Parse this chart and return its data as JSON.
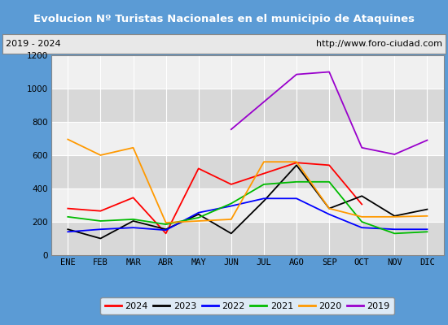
{
  "title": "Evolucion Nº Turistas Nacionales en el municipio de Ataquines",
  "subtitle_left": "2019 - 2024",
  "subtitle_right": "http://www.foro-ciudad.com",
  "title_bg_color": "#5b9bd5",
  "title_text_color": "#ffffff",
  "subtitle_bg_color": "#e8e8e8",
  "subtitle_text_color": "#000000",
  "months": [
    "ENE",
    "FEB",
    "MAR",
    "ABR",
    "MAY",
    "JUN",
    "JUL",
    "AGO",
    "SEP",
    "OCT",
    "NOV",
    "DIC"
  ],
  "ylim": [
    0,
    1200
  ],
  "yticks": [
    0,
    200,
    400,
    600,
    800,
    1000,
    1200
  ],
  "series": {
    "2024": {
      "color": "#ff0000",
      "data": [
        280,
        265,
        345,
        130,
        520,
        425,
        490,
        555,
        540,
        305,
        null,
        null
      ]
    },
    "2023": {
      "color": "#000000",
      "data": [
        155,
        100,
        205,
        155,
        245,
        130,
        325,
        540,
        280,
        355,
        235,
        275
      ]
    },
    "2022": {
      "color": "#0000ff",
      "data": [
        140,
        155,
        165,
        150,
        255,
        295,
        340,
        340,
        245,
        165,
        155,
        155
      ]
    },
    "2021": {
      "color": "#00bb00",
      "data": [
        230,
        205,
        215,
        185,
        225,
        310,
        425,
        440,
        440,
        200,
        130,
        140
      ]
    },
    "2020": {
      "color": "#ff9900",
      "data": [
        695,
        600,
        645,
        195,
        205,
        215,
        560,
        560,
        280,
        230,
        230,
        235
      ]
    },
    "2019": {
      "color": "#9900cc",
      "data": [
        null,
        null,
        null,
        null,
        null,
        755,
        null,
        1085,
        1100,
        645,
        605,
        690
      ]
    }
  },
  "legend_order": [
    "2024",
    "2023",
    "2022",
    "2021",
    "2020",
    "2019"
  ],
  "outer_border_color": "#5b9bd5",
  "plot_bg_color": "#f0f0f0",
  "grid_color": "#ffffff",
  "band_color_dark": "#d8d8d8",
  "band_color_light": "#f0f0f0"
}
